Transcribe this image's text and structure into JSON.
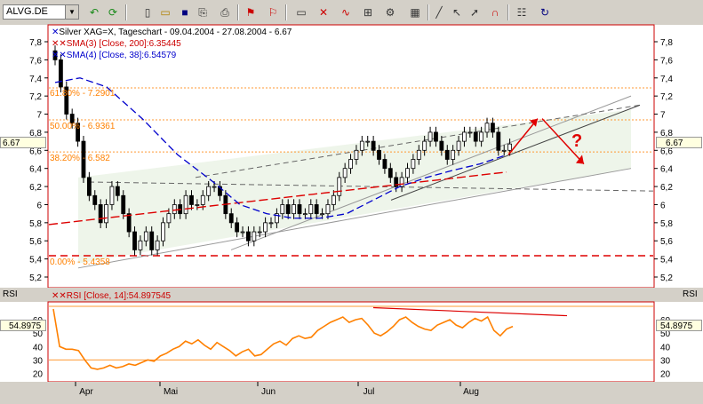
{
  "toolbar": {
    "symbol": "ALVG.DE",
    "icons": [
      "undo-icon",
      "refresh-icon",
      "new-icon",
      "open-icon",
      "save-icon",
      "copy-icon",
      "print-icon",
      "chart-flag-icon",
      "chart-flag2-icon",
      "bars-icon",
      "trend-icon",
      "indicator-icon",
      "settings-icon",
      "line-tool-icon",
      "arrow-tool-icon",
      "cursor-icon",
      "magnet-icon",
      "options-icon",
      "redo-icon"
    ]
  },
  "chart": {
    "legend_main": "Silver XAG=X, Tageschart - 09.04.2004 - 27.08.2004 - 6.67",
    "legend_sma1": "SMA(3) [Close, 200]:6.35445",
    "legend_sma2": "SMA(4) [Close, 38]:6.54579",
    "fib": [
      {
        "label": "61.80% - 7.2901",
        "value": 7.2901
      },
      {
        "label": "50.00% - 6.9361",
        "value": 6.9361
      },
      {
        "label": "38.20% - 6.582",
        "value": 6.582
      },
      {
        "label": "0.00% - 5.4358",
        "value": 5.4358
      }
    ],
    "question_mark": "?",
    "current_price": "6.67",
    "yticks": [
      "7,8",
      "7,6",
      "7,4",
      "7,2",
      "7",
      "6,8",
      "6,6",
      "6,4",
      "6,2",
      "6",
      "5,8",
      "5,6",
      "5,4",
      "5,2"
    ]
  },
  "rsi": {
    "panel_label": "RSI",
    "legend": "RSI [Close, 14]:54.897545",
    "current_value": "54.8975",
    "yticks": [
      "60",
      "50",
      "40",
      "30",
      "20"
    ]
  },
  "xaxis": {
    "months": [
      "Apr",
      "Mai",
      "Jun",
      "Jul",
      "Aug"
    ]
  },
  "colors": {
    "price_up": "#ffffff",
    "price_down": "#000000",
    "sma_long": "#dd0000",
    "sma_short": "#0000cc",
    "fib": "#ff9933",
    "rsi": "#ff8000",
    "channel_fill": "#eef5ea",
    "frame": "#cc0000"
  }
}
